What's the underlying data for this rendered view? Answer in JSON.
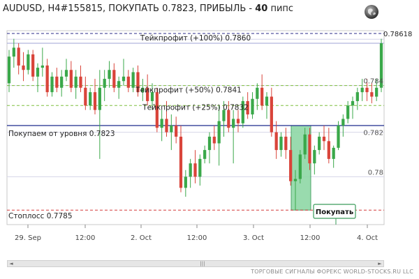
{
  "header": {
    "title_main": "AUDUSD, H4#155815, ПОКУПАТЬ 0.7823, ПРИБЫЛЬ - ",
    "title_bold": "40",
    "title_suffix": " пипс"
  },
  "footer": {
    "text": "ТОРГОВЫЕ СИГНАЛЫ ФОРЕКС WORLD-STOCKS.RU LLC"
  },
  "chart_data": {
    "type": "candlestick",
    "symbol": "AUDUSD",
    "timeframe": "H4",
    "x_ticks": [
      "29. Sep",
      "12:00",
      "2. Oct",
      "12:00",
      "3. Oct",
      "12:00",
      "4. Oct"
    ],
    "y_labels": [
      "0.78618",
      "0.784",
      "0.782",
      "0.78"
    ],
    "levels": [
      {
        "label": "Тейкпрофит (+100%) 0.7860",
        "value": 0.786,
        "color": "#9fa3d6",
        "style": "solid"
      },
      {
        "label": "Тейкпрофит (+50%) 0.7841",
        "value": 0.7841,
        "color": "#7fbf3f",
        "style": "dashed"
      },
      {
        "label": "Тейкпрофит (+25%) 0.7832",
        "value": 0.7832,
        "color": "#7fbf3f",
        "style": "dashed"
      },
      {
        "label": "Покупаем от уровня 0.7823",
        "value": 0.7823,
        "color": "#1f2a8c",
        "style": "solid"
      },
      {
        "label": "Стоплосс 0.7785",
        "value": 0.7785,
        "color": "#d43a3a",
        "style": "dashed"
      }
    ],
    "current_price": 0.78618,
    "signal_label": "Покупать",
    "bull_color": "#3aa84a",
    "bear_color": "#d9443a",
    "candles": [
      [
        0.7842,
        0.7857,
        0.7838,
        0.7854
      ],
      [
        0.7854,
        0.7862,
        0.7849,
        0.7858
      ],
      [
        0.7858,
        0.786,
        0.7846,
        0.785
      ],
      [
        0.785,
        0.7856,
        0.7843,
        0.7848
      ],
      [
        0.7848,
        0.7857,
        0.7846,
        0.7855
      ],
      [
        0.7855,
        0.7857,
        0.7843,
        0.7845
      ],
      [
        0.7845,
        0.7851,
        0.7838,
        0.7849
      ],
      [
        0.7849,
        0.7858,
        0.7845,
        0.785
      ],
      [
        0.785,
        0.7853,
        0.7836,
        0.7838
      ],
      [
        0.7838,
        0.7847,
        0.7836,
        0.7845
      ],
      [
        0.7845,
        0.7849,
        0.7838,
        0.784
      ],
      [
        0.784,
        0.7848,
        0.7836,
        0.7845
      ],
      [
        0.7845,
        0.7853,
        0.7843,
        0.7848
      ],
      [
        0.7848,
        0.7852,
        0.7838,
        0.784
      ],
      [
        0.784,
        0.7848,
        0.7835,
        0.7845
      ],
      [
        0.7845,
        0.785,
        0.7838,
        0.784
      ],
      [
        0.784,
        0.7845,
        0.783,
        0.7832
      ],
      [
        0.7832,
        0.784,
        0.783,
        0.7838
      ],
      [
        0.7838,
        0.7844,
        0.7828,
        0.783
      ],
      [
        0.783,
        0.7848,
        0.7808,
        0.784
      ],
      [
        0.784,
        0.7848,
        0.7834,
        0.7844
      ],
      [
        0.7844,
        0.7852,
        0.784,
        0.7848
      ],
      [
        0.7848,
        0.7851,
        0.7838,
        0.784
      ],
      [
        0.784,
        0.7845,
        0.7835,
        0.7843
      ],
      [
        0.7843,
        0.7853,
        0.7841,
        0.7845
      ],
      [
        0.7845,
        0.7848,
        0.7838,
        0.784
      ],
      [
        0.784,
        0.7849,
        0.7838,
        0.7847
      ],
      [
        0.7847,
        0.785,
        0.7836,
        0.7838
      ],
      [
        0.7838,
        0.7844,
        0.7834,
        0.784
      ],
      [
        0.784,
        0.7846,
        0.7832,
        0.7834
      ],
      [
        0.7834,
        0.7842,
        0.783,
        0.7838
      ],
      [
        0.7838,
        0.784,
        0.782,
        0.7822
      ],
      [
        0.7822,
        0.783,
        0.7816,
        0.7826
      ],
      [
        0.7826,
        0.7834,
        0.7818,
        0.782
      ],
      [
        0.782,
        0.7828,
        0.7812,
        0.7823
      ],
      [
        0.7823,
        0.7827,
        0.7815,
        0.7818
      ],
      [
        0.7818,
        0.7823,
        0.7793,
        0.7795
      ],
      [
        0.7795,
        0.7803,
        0.7791,
        0.78
      ],
      [
        0.78,
        0.7808,
        0.7795,
        0.7806
      ],
      [
        0.7806,
        0.7812,
        0.7797,
        0.78
      ],
      [
        0.78,
        0.781,
        0.7796,
        0.7808
      ],
      [
        0.7808,
        0.7814,
        0.7806,
        0.7812
      ],
      [
        0.7812,
        0.782,
        0.7806,
        0.7818
      ],
      [
        0.7818,
        0.7823,
        0.7812,
        0.7815
      ],
      [
        0.7815,
        0.7832,
        0.7805,
        0.7825
      ],
      [
        0.7825,
        0.7834,
        0.7818,
        0.783
      ],
      [
        0.783,
        0.7834,
        0.782,
        0.7822
      ],
      [
        0.7822,
        0.783,
        0.7806,
        0.7826
      ],
      [
        0.7826,
        0.783,
        0.782,
        0.7824
      ],
      [
        0.7824,
        0.7836,
        0.7822,
        0.7834
      ],
      [
        0.7834,
        0.7838,
        0.7826,
        0.7828
      ],
      [
        0.7828,
        0.7838,
        0.7826,
        0.7835
      ],
      [
        0.7835,
        0.7842,
        0.783,
        0.784
      ],
      [
        0.784,
        0.7846,
        0.783,
        0.7832
      ],
      [
        0.7832,
        0.7838,
        0.7826,
        0.7836
      ],
      [
        0.7836,
        0.784,
        0.7818,
        0.782
      ],
      [
        0.782,
        0.7825,
        0.7808,
        0.7812
      ],
      [
        0.7812,
        0.782,
        0.7809,
        0.7818
      ],
      [
        0.7818,
        0.7822,
        0.7808,
        0.7812
      ],
      [
        0.7812,
        0.7818,
        0.7796,
        0.7798
      ],
      [
        0.7798,
        0.7803,
        0.7785,
        0.7799
      ],
      [
        0.7799,
        0.7812,
        0.7797,
        0.781
      ],
      [
        0.781,
        0.7822,
        0.7808,
        0.7819
      ],
      [
        0.7819,
        0.7822,
        0.7803,
        0.7806
      ],
      [
        0.7806,
        0.7814,
        0.7801,
        0.7812
      ],
      [
        0.7812,
        0.782,
        0.781,
        0.7818
      ],
      [
        0.7818,
        0.7823,
        0.7812,
        0.7816
      ],
      [
        0.7816,
        0.7822,
        0.7806,
        0.7808
      ],
      [
        0.7808,
        0.7814,
        0.7804,
        0.7813
      ],
      [
        0.7813,
        0.7825,
        0.7812,
        0.7823
      ],
      [
        0.7823,
        0.7828,
        0.7818,
        0.7826
      ],
      [
        0.7826,
        0.7834,
        0.7824,
        0.7832
      ],
      [
        0.7832,
        0.7836,
        0.7826,
        0.7834
      ],
      [
        0.7834,
        0.784,
        0.783,
        0.7838
      ],
      [
        0.7838,
        0.7844,
        0.7834,
        0.784
      ],
      [
        0.784,
        0.7844,
        0.7834,
        0.7838
      ],
      [
        0.7838,
        0.7842,
        0.7833,
        0.7836
      ],
      [
        0.7836,
        0.7844,
        0.7834,
        0.784
      ],
      [
        0.784,
        0.7862,
        0.7838,
        0.786
      ]
    ]
  }
}
